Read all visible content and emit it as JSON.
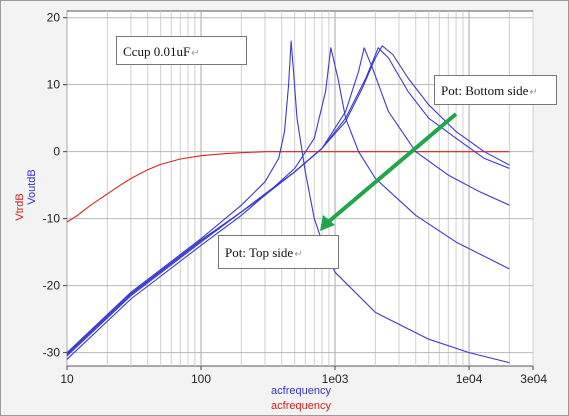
{
  "chart_data": {
    "type": "line",
    "x_scale": "log",
    "xlim": [
      10,
      30000
    ],
    "ylim": [
      -32,
      21
    ],
    "x_ticks": [
      {
        "value": 10,
        "label": "10"
      },
      {
        "value": 100,
        "label": "100"
      },
      {
        "value": 1000,
        "label": "1e03"
      },
      {
        "value": 10000,
        "label": "1e04"
      },
      {
        "value": 30000,
        "label": "3e04"
      }
    ],
    "y_ticks": [
      -30,
      -20,
      -10,
      0,
      10,
      20
    ],
    "xlabels": [
      {
        "text": "acfrequency",
        "color": "#3333cc"
      },
      {
        "text": "acfrequency",
        "color": "#cc2222"
      }
    ],
    "ylabels": [
      {
        "text": "VtrdB",
        "color": "#cc2222"
      },
      {
        "text": "VoutdB",
        "color": "#3333cc"
      }
    ],
    "grid": true,
    "annotations": [
      {
        "text": "Ccup 0.01uF",
        "mark": "↵"
      },
      {
        "text": "Pot: Bottom side",
        "mark": "↵"
      },
      {
        "text": "Pot: Top side",
        "mark": "↵"
      }
    ],
    "arrow_color": "#1fa64a",
    "series": [
      {
        "color": "#dd2222",
        "points": [
          [
            10,
            -10.5
          ],
          [
            12,
            -9.5
          ],
          [
            15,
            -8
          ],
          [
            20,
            -6.3
          ],
          [
            25,
            -5
          ],
          [
            30,
            -4
          ],
          [
            40,
            -2.7
          ],
          [
            50,
            -1.9
          ],
          [
            70,
            -1.1
          ],
          [
            100,
            -0.6
          ],
          [
            150,
            -0.3
          ],
          [
            200,
            -0.15
          ],
          [
            300,
            0
          ],
          [
            500,
            0
          ],
          [
            1000,
            0
          ],
          [
            3000,
            0
          ],
          [
            10000,
            0
          ],
          [
            20000,
            0
          ]
        ]
      },
      {
        "color": "#3a3ad0",
        "points": [
          [
            10,
            -30
          ],
          [
            30,
            -21
          ],
          [
            100,
            -13
          ],
          [
            200,
            -8
          ],
          [
            300,
            -4.5
          ],
          [
            380,
            -1
          ],
          [
            420,
            3
          ],
          [
            450,
            10
          ],
          [
            470,
            16.5
          ],
          [
            490,
            12
          ],
          [
            520,
            5
          ],
          [
            600,
            -3
          ],
          [
            700,
            -10
          ],
          [
            850,
            -15
          ],
          [
            1000,
            -18
          ],
          [
            2000,
            -24
          ],
          [
            5000,
            -28
          ],
          [
            10000,
            -30
          ],
          [
            20000,
            -31.5
          ]
        ]
      },
      {
        "color": "#3a3ad0",
        "points": [
          [
            10,
            -31
          ],
          [
            30,
            -22
          ],
          [
            100,
            -14
          ],
          [
            200,
            -9.5
          ],
          [
            300,
            -6.5
          ],
          [
            500,
            -2.5
          ],
          [
            700,
            2
          ],
          [
            850,
            9
          ],
          [
            930,
            15.5
          ],
          [
            1050,
            11
          ],
          [
            1200,
            5
          ],
          [
            1500,
            0
          ],
          [
            2000,
            -4
          ],
          [
            4000,
            -9.5
          ],
          [
            8000,
            -13.5
          ],
          [
            20000,
            -17.5
          ]
        ]
      },
      {
        "color": "#3a3ad0",
        "points": [
          [
            10,
            -30.5
          ],
          [
            30,
            -21.5
          ],
          [
            100,
            -13.5
          ],
          [
            200,
            -9
          ],
          [
            300,
            -6.5
          ],
          [
            500,
            -3
          ],
          [
            800,
            0.5
          ],
          [
            1200,
            6
          ],
          [
            1500,
            12
          ],
          [
            1650,
            15.5
          ],
          [
            1900,
            12.5
          ],
          [
            2500,
            6
          ],
          [
            4000,
            0
          ],
          [
            7000,
            -3.5
          ],
          [
            12000,
            -6
          ],
          [
            20000,
            -8
          ]
        ]
      },
      {
        "color": "#3a3ad0",
        "points": [
          [
            10,
            -30.2
          ],
          [
            30,
            -21.2
          ],
          [
            100,
            -13.2
          ],
          [
            200,
            -9
          ],
          [
            300,
            -6.3
          ],
          [
            500,
            -3
          ],
          [
            800,
            0.5
          ],
          [
            1200,
            5
          ],
          [
            1700,
            11
          ],
          [
            2100,
            15.5
          ],
          [
            2500,
            14
          ],
          [
            3500,
            9
          ],
          [
            5000,
            5
          ],
          [
            8000,
            2
          ],
          [
            13000,
            -1
          ],
          [
            20000,
            -2.5
          ]
        ]
      },
      {
        "color": "#3a3ad0",
        "points": [
          [
            10,
            -30.3
          ],
          [
            30,
            -21.3
          ],
          [
            100,
            -13.3
          ],
          [
            200,
            -9
          ],
          [
            300,
            -6.3
          ],
          [
            500,
            -3
          ],
          [
            800,
            0.5
          ],
          [
            1200,
            4.5
          ],
          [
            1600,
            9.5
          ],
          [
            2000,
            14
          ],
          [
            2250,
            15.8
          ],
          [
            2700,
            14.5
          ],
          [
            3500,
            11
          ],
          [
            5000,
            7
          ],
          [
            8000,
            3
          ],
          [
            13000,
            0
          ],
          [
            20000,
            -2
          ]
        ]
      }
    ]
  }
}
